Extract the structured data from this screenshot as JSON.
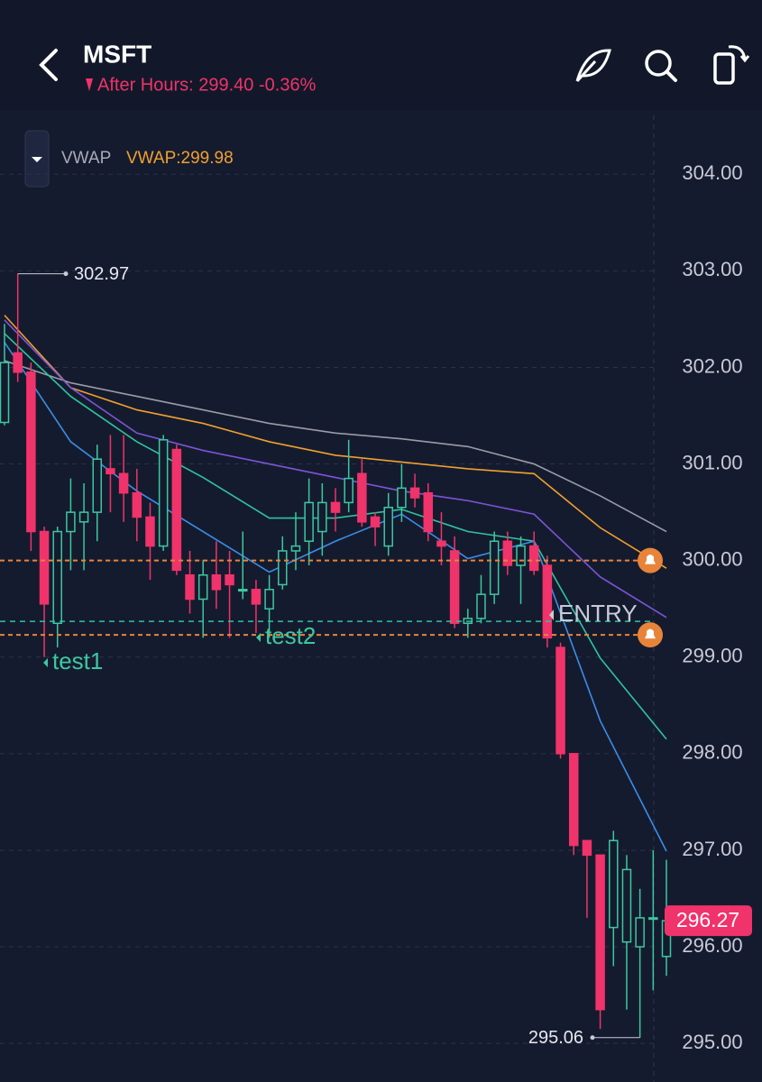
{
  "header": {
    "symbol": "MSFT",
    "after_hours": "After Hours: 299.40 -0.36%"
  },
  "indicator": {
    "name": "VWAP",
    "label": "VWAP:299.98"
  },
  "chart_data": {
    "type": "candlestick",
    "up_color": "#3cc8a0",
    "down_color": "#f0336b",
    "open": [
      301.43,
      302.15,
      301.95,
      300.3,
      299.35,
      300.3,
      300.4,
      300.5,
      300.95,
      300.9,
      300.7,
      300.45,
      300.15,
      301.15,
      299.85,
      299.6,
      299.85,
      299.85,
      299.7,
      299.7,
      299.5,
      299.75,
      300.1,
      300.2,
      300.3,
      300.6,
      300.6,
      300.9,
      300.45,
      300.15,
      300.55,
      300.75,
      300.7,
      300.2,
      300.1,
      299.35,
      299.4,
      299.65,
      300.2,
      299.95,
      300.15,
      299.95,
      299.1,
      298.0,
      297.1,
      296.95,
      296.2,
      296.05,
      296.0,
      296.3,
      295.9
    ],
    "high": [
      302.45,
      302.97,
      302.05,
      300.35,
      300.35,
      300.85,
      300.8,
      301.2,
      301.3,
      301.3,
      300.95,
      300.6,
      301.3,
      301.2,
      300.1,
      300.0,
      300.2,
      300.1,
      300.3,
      299.8,
      299.85,
      300.25,
      300.5,
      300.85,
      300.8,
      300.75,
      301.25,
      301.05,
      300.5,
      300.7,
      301.0,
      300.9,
      300.8,
      300.5,
      300.25,
      299.5,
      299.85,
      300.3,
      300.3,
      300.25,
      300.3,
      300.05,
      299.15,
      298.0,
      297.1,
      296.95,
      297.2,
      296.95,
      296.6,
      297.0,
      296.9
    ],
    "low": [
      301.4,
      301.85,
      300.1,
      299.0,
      299.1,
      299.9,
      299.9,
      300.2,
      300.5,
      300.4,
      300.2,
      299.8,
      300.1,
      299.85,
      299.45,
      299.2,
      299.5,
      299.2,
      299.6,
      299.25,
      299.2,
      299.7,
      299.9,
      299.95,
      300.05,
      300.3,
      300.5,
      300.35,
      300.15,
      300.05,
      300.4,
      300.55,
      300.2,
      299.95,
      299.3,
      299.2,
      299.35,
      299.55,
      299.85,
      299.55,
      299.85,
      299.1,
      297.95,
      296.95,
      296.3,
      295.15,
      295.8,
      295.35,
      295.06,
      295.55,
      295.7
    ],
    "close": [
      302.05,
      301.95,
      300.3,
      299.55,
      300.3,
      300.5,
      300.5,
      301.05,
      300.9,
      300.7,
      300.45,
      300.15,
      301.25,
      299.9,
      299.6,
      299.85,
      299.7,
      299.75,
      299.7,
      299.55,
      299.7,
      300.1,
      300.15,
      300.6,
      300.6,
      300.5,
      300.85,
      300.4,
      300.35,
      300.55,
      300.75,
      300.65,
      300.3,
      300.15,
      299.35,
      299.4,
      299.65,
      300.2,
      299.95,
      300.15,
      299.9,
      299.2,
      298.0,
      297.05,
      296.95,
      295.35,
      297.1,
      296.8,
      296.3,
      296.3,
      296.27
    ],
    "lines": [
      {
        "color": "#9a9ca6",
        "x": [
          0,
          5,
          10,
          15,
          20,
          25,
          30,
          35,
          40,
          45,
          50
        ],
        "values": [
          302.07,
          301.84,
          301.7,
          301.56,
          301.42,
          301.32,
          301.26,
          301.18,
          301.0,
          300.67,
          300.3
        ]
      },
      {
        "color": "#f0a030",
        "x": [
          0,
          5,
          10,
          15,
          20,
          25,
          30,
          35,
          40,
          45,
          50
        ],
        "values": [
          302.54,
          301.79,
          301.56,
          301.42,
          301.23,
          301.09,
          301.02,
          300.95,
          300.9,
          300.34,
          299.92
        ]
      },
      {
        "color": "#7b55d8",
        "x": [
          0,
          5,
          10,
          15,
          20,
          25,
          30,
          35,
          40,
          45,
          50
        ],
        "values": [
          302.49,
          301.79,
          301.32,
          301.14,
          301.0,
          300.86,
          300.72,
          300.62,
          300.48,
          299.83,
          299.41
        ]
      },
      {
        "color": "#2fc3a0",
        "x": [
          0,
          5,
          10,
          15,
          20,
          25,
          30,
          35,
          40,
          45,
          50
        ],
        "values": [
          302.35,
          301.7,
          301.23,
          300.86,
          300.44,
          300.44,
          300.53,
          300.3,
          300.2,
          298.99,
          298.15
        ]
      },
      {
        "color": "#3a8ee8",
        "x": [
          0,
          5,
          10,
          15,
          20,
          25,
          30,
          35,
          40,
          45,
          50
        ],
        "values": [
          302.26,
          301.23,
          300.72,
          300.3,
          299.88,
          300.2,
          300.48,
          300.02,
          300.2,
          298.34,
          296.99
        ]
      }
    ],
    "alert_lines": [
      {
        "value": 300.0,
        "color": "#e8843a"
      },
      {
        "value": 299.23,
        "color": "#e8843a"
      }
    ],
    "entry_line": {
      "value": 299.37,
      "color": "#2fc3a0",
      "label": "ENTRY"
    },
    "annotations": [
      "test1",
      "test2"
    ],
    "high_marker": 302.97,
    "low_marker": 295.06,
    "last_price": 296.27,
    "ylim": [
      294.6,
      304.6
    ],
    "yticks": [
      {
        "value": 295,
        "label": "295.00"
      },
      {
        "value": 296,
        "label": "296.00"
      },
      {
        "value": 297,
        "label": "297.00"
      },
      {
        "value": 298,
        "label": "298.00"
      },
      {
        "value": 299,
        "label": "299.00"
      },
      {
        "value": 300,
        "label": "300.00"
      },
      {
        "value": 301,
        "label": "301.00"
      },
      {
        "value": 302,
        "label": "302.00"
      },
      {
        "value": 303,
        "label": "303.00"
      },
      {
        "value": 304,
        "label": "304.00"
      }
    ],
    "grid": true
  }
}
